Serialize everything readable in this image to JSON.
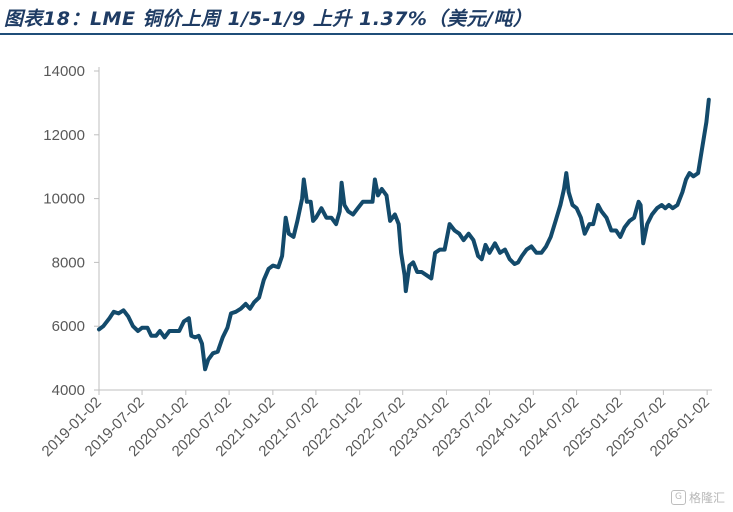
{
  "header": {
    "title": "图表18：LME 铜价上周 1/5-1/9 上升 1.37%（美元/吨）"
  },
  "watermark": {
    "text": "格隆汇",
    "icon": "gelonghui-logo-icon"
  },
  "colors": {
    "line": "#134a6b",
    "axis": "#bfbfbf",
    "tick_text": "#595959",
    "title": "#1f3c64"
  },
  "chart_data": {
    "type": "line",
    "title": "图表18：LME 铜价上周 1/5-1/9 上升 1.37%（美元/吨）",
    "xlabel": "",
    "ylabel": "",
    "ylim": [
      4000,
      14000
    ],
    "yticks": [
      4000,
      6000,
      8000,
      10000,
      12000,
      14000
    ],
    "ytick_labels": [
      "4000",
      "6000",
      "8000",
      "10000",
      "12000",
      "14000"
    ],
    "xlim": [
      "2019-01-02",
      "2026-01-14"
    ],
    "xticks": [
      "2019-01-02",
      "2019-07-02",
      "2020-01-02",
      "2020-07-02",
      "2021-01-02",
      "2021-07-02",
      "2022-01-02",
      "2022-07-02",
      "2023-01-02",
      "2023-07-02",
      "2024-01-02",
      "2024-07-02",
      "2025-01-02",
      "2025-07-02",
      "2026-01-02"
    ],
    "grid": false,
    "legend": "none",
    "series": [
      {
        "points": [
          [
            "2019-01-02",
            5900
          ],
          [
            "2019-01-20",
            6000
          ],
          [
            "2019-02-15",
            6250
          ],
          [
            "2019-03-05",
            6450
          ],
          [
            "2019-03-25",
            6400
          ],
          [
            "2019-04-15",
            6500
          ],
          [
            "2019-05-05",
            6300
          ],
          [
            "2019-05-25",
            6000
          ],
          [
            "2019-06-15",
            5850
          ],
          [
            "2019-07-02",
            5950
          ],
          [
            "2019-07-25",
            5950
          ],
          [
            "2019-08-10",
            5700
          ],
          [
            "2019-08-30",
            5700
          ],
          [
            "2019-09-15",
            5850
          ],
          [
            "2019-10-05",
            5650
          ],
          [
            "2019-10-25",
            5850
          ],
          [
            "2019-11-15",
            5850
          ],
          [
            "2019-12-05",
            5850
          ],
          [
            "2019-12-25",
            6150
          ],
          [
            "2020-01-15",
            6250
          ],
          [
            "2020-01-25",
            5700
          ],
          [
            "2020-02-10",
            5650
          ],
          [
            "2020-02-25",
            5700
          ],
          [
            "2020-03-10",
            5450
          ],
          [
            "2020-03-23",
            4650
          ],
          [
            "2020-04-05",
            4950
          ],
          [
            "2020-04-25",
            5150
          ],
          [
            "2020-05-15",
            5200
          ],
          [
            "2020-06-05",
            5650
          ],
          [
            "2020-06-25",
            5950
          ],
          [
            "2020-07-10",
            6400
          ],
          [
            "2020-07-30",
            6450
          ],
          [
            "2020-08-20",
            6550
          ],
          [
            "2020-09-10",
            6700
          ],
          [
            "2020-09-28",
            6550
          ],
          [
            "2020-10-15",
            6750
          ],
          [
            "2020-11-05",
            6900
          ],
          [
            "2020-11-25",
            7450
          ],
          [
            "2020-12-15",
            7800
          ],
          [
            "2021-01-02",
            7900
          ],
          [
            "2021-01-25",
            7850
          ],
          [
            "2021-02-10",
            8200
          ],
          [
            "2021-02-25",
            9400
          ],
          [
            "2021-03-10",
            8900
          ],
          [
            "2021-03-30",
            8800
          ],
          [
            "2021-04-15",
            9300
          ],
          [
            "2021-05-05",
            10000
          ],
          [
            "2021-05-12",
            10600
          ],
          [
            "2021-05-25",
            9900
          ],
          [
            "2021-06-10",
            9900
          ],
          [
            "2021-06-20",
            9300
          ],
          [
            "2021-07-02",
            9400
          ],
          [
            "2021-07-25",
            9700
          ],
          [
            "2021-08-15",
            9400
          ],
          [
            "2021-09-05",
            9400
          ],
          [
            "2021-09-25",
            9200
          ],
          [
            "2021-10-10",
            9600
          ],
          [
            "2021-10-18",
            10500
          ],
          [
            "2021-10-30",
            9800
          ],
          [
            "2021-11-15",
            9600
          ],
          [
            "2021-12-05",
            9500
          ],
          [
            "2021-12-25",
            9700
          ],
          [
            "2022-01-15",
            9900
          ],
          [
            "2022-02-05",
            9900
          ],
          [
            "2022-02-25",
            9900
          ],
          [
            "2022-03-07",
            10600
          ],
          [
            "2022-03-20",
            10100
          ],
          [
            "2022-04-05",
            10300
          ],
          [
            "2022-04-25",
            10100
          ],
          [
            "2022-05-10",
            9300
          ],
          [
            "2022-05-30",
            9500
          ],
          [
            "2022-06-15",
            9200
          ],
          [
            "2022-06-25",
            8300
          ],
          [
            "2022-07-10",
            7600
          ],
          [
            "2022-07-15",
            7100
          ],
          [
            "2022-07-30",
            7900
          ],
          [
            "2022-08-15",
            8000
          ],
          [
            "2022-09-01",
            7700
          ],
          [
            "2022-09-20",
            7700
          ],
          [
            "2022-10-10",
            7600
          ],
          [
            "2022-10-30",
            7500
          ],
          [
            "2022-11-15",
            8300
          ],
          [
            "2022-12-05",
            8400
          ],
          [
            "2022-12-25",
            8400
          ],
          [
            "2023-01-15",
            9200
          ],
          [
            "2023-02-05",
            9000
          ],
          [
            "2023-02-25",
            8900
          ],
          [
            "2023-03-15",
            8700
          ],
          [
            "2023-04-05",
            8900
          ],
          [
            "2023-04-25",
            8700
          ],
          [
            "2023-05-15",
            8200
          ],
          [
            "2023-05-30",
            8100
          ],
          [
            "2023-06-15",
            8550
          ],
          [
            "2023-07-02",
            8300
          ],
          [
            "2023-07-25",
            8600
          ],
          [
            "2023-08-15",
            8300
          ],
          [
            "2023-09-05",
            8400
          ],
          [
            "2023-09-25",
            8100
          ],
          [
            "2023-10-15",
            7950
          ],
          [
            "2023-10-30",
            8000
          ],
          [
            "2023-11-15",
            8200
          ],
          [
            "2023-12-05",
            8400
          ],
          [
            "2023-12-25",
            8500
          ],
          [
            "2024-01-15",
            8300
          ],
          [
            "2024-02-05",
            8300
          ],
          [
            "2024-02-25",
            8500
          ],
          [
            "2024-03-15",
            8800
          ],
          [
            "2024-04-05",
            9300
          ],
          [
            "2024-04-25",
            9800
          ],
          [
            "2024-05-10",
            10300
          ],
          [
            "2024-05-20",
            10800
          ],
          [
            "2024-05-30",
            10200
          ],
          [
            "2024-06-15",
            9800
          ],
          [
            "2024-07-02",
            9700
          ],
          [
            "2024-07-20",
            9400
          ],
          [
            "2024-08-05",
            8900
          ],
          [
            "2024-08-25",
            9200
          ],
          [
            "2024-09-10",
            9200
          ],
          [
            "2024-09-30",
            9800
          ],
          [
            "2024-10-15",
            9600
          ],
          [
            "2024-11-05",
            9400
          ],
          [
            "2024-11-25",
            9000
          ],
          [
            "2024-12-15",
            9000
          ],
          [
            "2025-01-02",
            8800
          ],
          [
            "2025-01-20",
            9100
          ],
          [
            "2025-02-10",
            9300
          ],
          [
            "2025-03-01",
            9400
          ],
          [
            "2025-03-20",
            9900
          ],
          [
            "2025-03-28",
            9800
          ],
          [
            "2025-04-08",
            8600
          ],
          [
            "2025-04-25",
            9200
          ],
          [
            "2025-05-15",
            9500
          ],
          [
            "2025-06-05",
            9700
          ],
          [
            "2025-06-25",
            9800
          ],
          [
            "2025-07-10",
            9700
          ],
          [
            "2025-07-25",
            9800
          ],
          [
            "2025-08-10",
            9700
          ],
          [
            "2025-08-30",
            9800
          ],
          [
            "2025-09-20",
            10200
          ],
          [
            "2025-10-05",
            10600
          ],
          [
            "2025-10-20",
            10800
          ],
          [
            "2025-11-05",
            10700
          ],
          [
            "2025-11-25",
            10800
          ],
          [
            "2025-12-10",
            11500
          ],
          [
            "2025-12-30",
            12400
          ],
          [
            "2026-01-09",
            13100
          ]
        ]
      }
    ]
  }
}
